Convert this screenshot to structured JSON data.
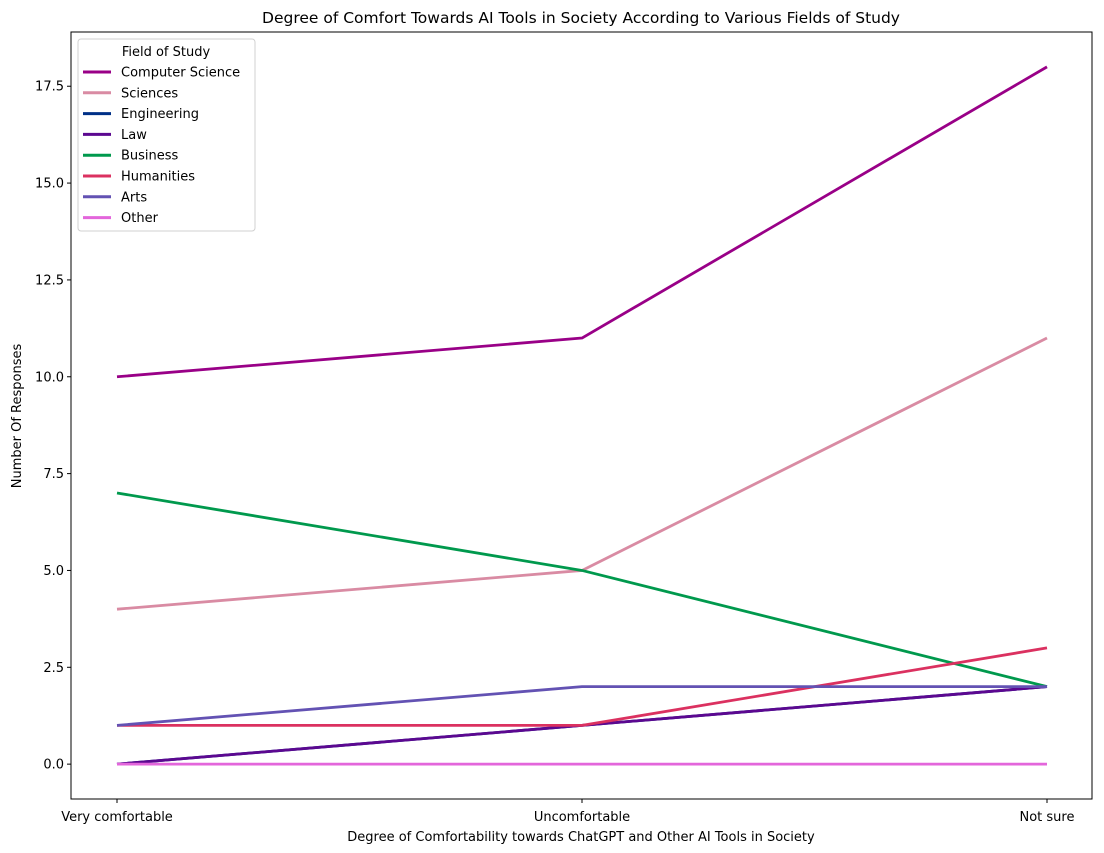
{
  "chart_data": {
    "type": "line",
    "title": "Degree of Comfort Towards AI Tools in Society According to Various Fields of Study",
    "xlabel": "Degree of Comfortability towards ChatGPT and Other AI Tools in Society",
    "ylabel": "Number Of Responses",
    "categories": [
      "Very comfortable",
      "Uncomfortable",
      "Not sure"
    ],
    "ylim": [
      -0.9,
      18.9
    ],
    "yticks": [
      0.0,
      2.5,
      5.0,
      7.5,
      10.0,
      12.5,
      15.0,
      17.5
    ],
    "ytick_labels": [
      "0.0",
      "2.5",
      "5.0",
      "7.5",
      "10.0",
      "12.5",
      "15.0",
      "17.5"
    ],
    "grid": false,
    "legend": {
      "title": "Field of Study",
      "placement": "top-left"
    },
    "series": [
      {
        "name": "Computer Science",
        "color": "#990087",
        "values": [
          10,
          11,
          18
        ]
      },
      {
        "name": "Sciences",
        "color": "#d98ba3",
        "values": [
          4,
          5,
          11
        ]
      },
      {
        "name": "Engineering",
        "color": "#003087",
        "values": [
          0,
          1,
          2
        ]
      },
      {
        "name": "Law",
        "color": "#5c0890",
        "values": [
          0,
          1,
          2
        ]
      },
      {
        "name": "Business",
        "color": "#00994d",
        "values": [
          7,
          5,
          2
        ]
      },
      {
        "name": "Humanities",
        "color": "#db3160",
        "values": [
          1,
          1,
          3
        ]
      },
      {
        "name": "Arts",
        "color": "#6352b3",
        "values": [
          1,
          2,
          2
        ]
      },
      {
        "name": "Other",
        "color": "#e366db",
        "values": [
          0,
          0,
          0
        ]
      }
    ]
  }
}
